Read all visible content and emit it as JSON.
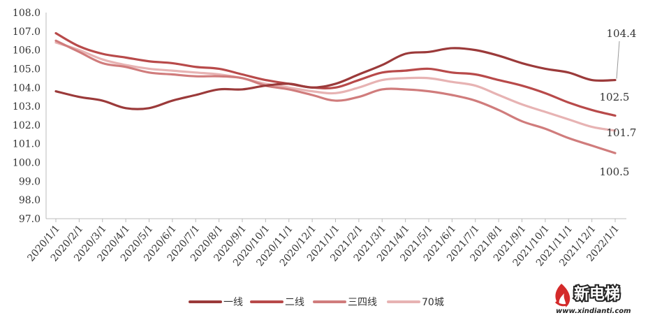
{
  "chart_data": {
    "type": "line",
    "title": "",
    "xlabel": "",
    "ylabel": "",
    "ylim": [
      97.0,
      108.0
    ],
    "yticks": [
      "97.0",
      "98.0",
      "99.0",
      "100.0",
      "101.0",
      "102.0",
      "103.0",
      "104.0",
      "105.0",
      "106.0",
      "107.0",
      "108.0"
    ],
    "grid": false,
    "legend": "bottom-center",
    "categories": [
      "2020/1/1",
      "2020/2/1",
      "2020/3/1",
      "2020/4/1",
      "2020/5/1",
      "2020/6/1",
      "2020/7/1",
      "2020/8/1",
      "2020/9/1",
      "2020/10/1",
      "2020/11/1",
      "2020/12/1",
      "2021/1/1",
      "2021/2/1",
      "2021/3/1",
      "2021/4/1",
      "2021/5/1",
      "2021/6/1",
      "2021/7/1",
      "2021/8/1",
      "2021/9/1",
      "2021/10/1",
      "2021/11/1",
      "2021/12/1",
      "2022/1/1"
    ],
    "series": [
      {
        "name": "一线",
        "color": "#9b3a3a",
        "values": [
          103.8,
          103.5,
          103.3,
          102.9,
          102.9,
          103.3,
          103.6,
          103.9,
          103.9,
          104.1,
          104.2,
          104.0,
          104.2,
          104.7,
          105.2,
          105.8,
          105.9,
          106.1,
          106.0,
          105.7,
          105.3,
          105.0,
          104.8,
          104.4,
          104.4
        ],
        "end_label": "104.4"
      },
      {
        "name": "二线",
        "color": "#b84a4a",
        "values": [
          106.9,
          106.2,
          105.8,
          105.6,
          105.4,
          105.3,
          105.1,
          105.0,
          104.7,
          104.4,
          104.2,
          104.0,
          104.0,
          104.4,
          104.8,
          104.9,
          105.0,
          104.8,
          104.7,
          104.4,
          104.1,
          103.7,
          103.2,
          102.8,
          102.5
        ],
        "end_label": "102.5"
      },
      {
        "name": "三四线",
        "color": "#d07c7c",
        "values": [
          106.5,
          105.9,
          105.3,
          105.1,
          104.8,
          104.7,
          104.6,
          104.6,
          104.5,
          104.1,
          103.9,
          103.6,
          103.3,
          103.5,
          103.9,
          103.9,
          103.8,
          103.6,
          103.3,
          102.8,
          102.2,
          101.8,
          101.3,
          100.9,
          100.5
        ],
        "end_label": "100.5"
      },
      {
        "name": "70城",
        "color": "#e7b3b3",
        "values": [
          106.4,
          106.0,
          105.5,
          105.2,
          105.0,
          104.9,
          104.8,
          104.7,
          104.5,
          104.2,
          104.0,
          103.8,
          103.7,
          104.0,
          104.4,
          104.5,
          104.5,
          104.3,
          104.1,
          103.6,
          103.1,
          102.7,
          102.3,
          101.9,
          101.7
        ],
        "end_label": "101.7"
      }
    ]
  },
  "watermark": {
    "brand": "新电梯",
    "url": "www.xindianti.com"
  }
}
